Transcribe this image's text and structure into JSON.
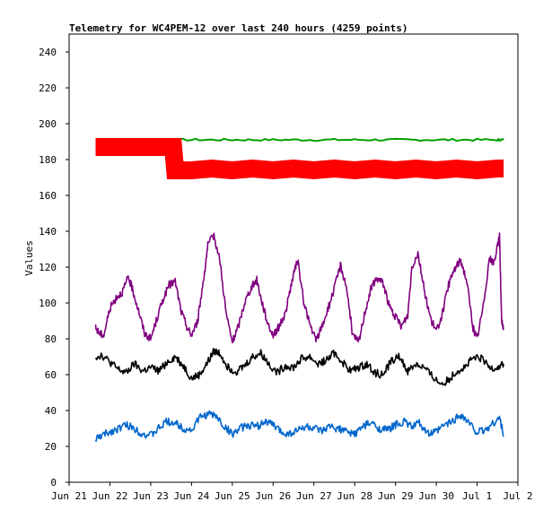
{
  "chart_data": {
    "type": "line",
    "title": "Telemetry for WC4PEM-12 over last 240 hours (4259 points)",
    "xlabel": "",
    "ylabel": "Values",
    "ylim": [
      0,
      250
    ],
    "yticks": [
      0,
      20,
      40,
      60,
      80,
      100,
      120,
      140,
      160,
      180,
      200,
      220,
      240
    ],
    "xlim": [
      0,
      11
    ],
    "xticks": [
      "Jun 21",
      "Jun 22",
      "Jun 23",
      "Jun 24",
      "Jun 25",
      "Jun 26",
      "Jun 27",
      "Jun 28",
      "Jun 29",
      "Jun 30",
      "Jul 1",
      "Jul 2"
    ],
    "grid": false,
    "legend": "none",
    "series": [
      {
        "color": "#00a000",
        "x": [
          0.65,
          1.5,
          2.5,
          3.5,
          4.5,
          5.5,
          6.5,
          7.5,
          8.5,
          9.5,
          10.5,
          10.65
        ],
        "values": [
          191,
          191,
          191,
          191,
          191,
          191,
          191,
          191,
          191,
          191,
          191,
          191
        ]
      },
      {
        "color": "#ff0000",
        "x": [
          0.65,
          1.0,
          1.5,
          2.0,
          2.55,
          2.6,
          3.0,
          3.5,
          4.0,
          4.5,
          5.0,
          5.5,
          6.0,
          6.5,
          7.0,
          7.5,
          8.0,
          8.5,
          9.0,
          9.5,
          10.0,
          10.5,
          10.65
        ],
        "values": [
          187,
          187,
          187,
          187,
          187,
          174,
          174,
          175,
          174,
          175,
          174,
          175,
          174,
          175,
          174,
          175,
          174,
          175,
          174,
          175,
          174,
          175,
          175
        ],
        "band": 10
      },
      {
        "color": "#800080",
        "x": [
          0.65,
          0.75,
          0.85,
          1.0,
          1.15,
          1.3,
          1.45,
          1.55,
          1.7,
          1.85,
          2.0,
          2.15,
          2.3,
          2.45,
          2.6,
          2.75,
          2.9,
          3.0,
          3.15,
          3.3,
          3.4,
          3.55,
          3.7,
          3.85,
          4.0,
          4.15,
          4.3,
          4.45,
          4.6,
          4.7,
          4.85,
          5.0,
          5.15,
          5.3,
          5.45,
          5.6,
          5.75,
          5.9,
          6.05,
          6.2,
          6.35,
          6.5,
          6.65,
          6.8,
          6.95,
          7.1,
          7.25,
          7.4,
          7.55,
          7.7,
          7.85,
          8.0,
          8.15,
          8.3,
          8.4,
          8.55,
          8.7,
          8.85,
          9.0,
          9.15,
          9.3,
          9.45,
          9.6,
          9.75,
          9.9,
          10.0,
          10.15,
          10.3,
          10.4,
          10.5,
          10.55,
          10.6,
          10.65
        ],
        "values": [
          86,
          83,
          82,
          97,
          103,
          106,
          114,
          108,
          96,
          83,
          80,
          91,
          102,
          110,
          112,
          95,
          86,
          82,
          90,
          114,
          132,
          138,
          123,
          94,
          78,
          87,
          100,
          108,
          113,
          103,
          90,
          82,
          87,
          94,
          111,
          124,
          101,
          88,
          79,
          87,
          97,
          108,
          121,
          109,
          82,
          78,
          95,
          108,
          114,
          111,
          98,
          92,
          87,
          93,
          120,
          128,
          108,
          92,
          84,
          94,
          110,
          119,
          124,
          112,
          86,
          80,
          98,
          125,
          122,
          131,
          138,
          90,
          85
        ]
      },
      {
        "color": "#000000",
        "x": [
          0.65,
          0.8,
          1.0,
          1.2,
          1.4,
          1.6,
          1.8,
          2.0,
          2.2,
          2.4,
          2.6,
          2.8,
          3.0,
          3.2,
          3.4,
          3.55,
          3.7,
          3.9,
          4.1,
          4.3,
          4.5,
          4.7,
          4.9,
          5.1,
          5.3,
          5.5,
          5.7,
          5.9,
          6.1,
          6.3,
          6.5,
          6.7,
          6.9,
          7.1,
          7.3,
          7.5,
          7.7,
          7.9,
          8.1,
          8.3,
          8.5,
          8.7,
          8.9,
          9.1,
          9.3,
          9.5,
          9.7,
          9.9,
          10.1,
          10.3,
          10.5,
          10.65
        ],
        "values": [
          70,
          71,
          67,
          63,
          61,
          66,
          62,
          64,
          62,
          67,
          70,
          65,
          58,
          60,
          67,
          73,
          72,
          64,
          62,
          65,
          70,
          72,
          66,
          61,
          65,
          64,
          69,
          70,
          66,
          68,
          72,
          67,
          62,
          64,
          66,
          61,
          60,
          68,
          70,
          62,
          66,
          64,
          59,
          55,
          57,
          62,
          64,
          69,
          69,
          64,
          64,
          66
        ]
      },
      {
        "color": "#0066cc",
        "x": [
          0.65,
          0.8,
          1.0,
          1.2,
          1.4,
          1.6,
          1.8,
          2.0,
          2.2,
          2.4,
          2.6,
          2.8,
          3.0,
          3.2,
          3.4,
          3.6,
          3.8,
          4.0,
          4.2,
          4.4,
          4.6,
          4.8,
          5.0,
          5.2,
          5.4,
          5.6,
          5.8,
          6.0,
          6.2,
          6.4,
          6.6,
          6.8,
          7.0,
          7.2,
          7.4,
          7.6,
          7.8,
          8.0,
          8.2,
          8.4,
          8.6,
          8.8,
          9.0,
          9.2,
          9.4,
          9.6,
          9.8,
          10.0,
          10.2,
          10.4,
          10.55,
          10.65
        ],
        "values": [
          24,
          26,
          28,
          30,
          32,
          30,
          27,
          26,
          30,
          34,
          33,
          30,
          29,
          36,
          38,
          37,
          31,
          27,
          30,
          32,
          31,
          34,
          32,
          28,
          27,
          29,
          31,
          30,
          28,
          31,
          30,
          28,
          27,
          31,
          33,
          30,
          29,
          32,
          34,
          31,
          33,
          27,
          28,
          32,
          34,
          38,
          33,
          28,
          29,
          33,
          36,
          26
        ]
      }
    ]
  }
}
